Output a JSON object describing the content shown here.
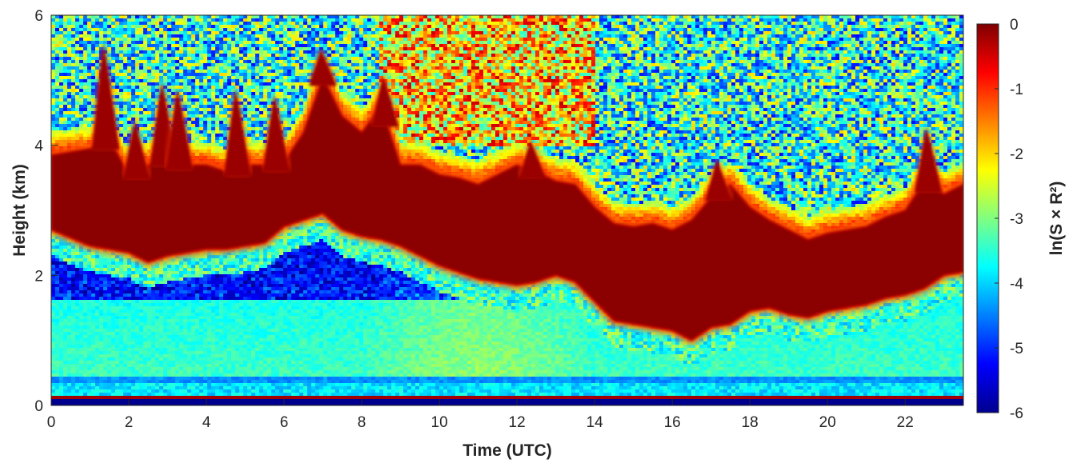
{
  "chart_data": {
    "type": "heatmap",
    "title": "",
    "xlabel": "Time (UTC)",
    "ylabel": "Height (km)",
    "xlim": [
      0,
      23.5
    ],
    "ylim": [
      0,
      6
    ],
    "xticks": [
      0,
      2,
      4,
      6,
      8,
      10,
      12,
      14,
      16,
      18,
      20,
      22
    ],
    "yticks": [
      0,
      2,
      4,
      6
    ],
    "colorbar": {
      "label": "ln(S × R²)",
      "range": [
        -6,
        0
      ],
      "ticks": [
        0,
        -1,
        -2,
        -3,
        -4,
        -5,
        -6
      ],
      "colormap": "jet",
      "colors": [
        "#00008f",
        "#0000ff",
        "#0080ff",
        "#00ffff",
        "#80ff80",
        "#ffff00",
        "#ff8000",
        "#ff0000",
        "#800000"
      ]
    },
    "layers": {
      "cloud_base_km": [
        [
          0,
          2.7
        ],
        [
          1,
          2.45
        ],
        [
          1.5,
          2.4
        ],
        [
          2,
          2.35
        ],
        [
          2.5,
          2.2
        ],
        [
          3,
          2.3
        ],
        [
          3.5,
          2.35
        ],
        [
          4,
          2.4
        ],
        [
          4.5,
          2.4
        ],
        [
          5,
          2.45
        ],
        [
          5.5,
          2.5
        ],
        [
          6,
          2.75
        ],
        [
          6.5,
          2.85
        ],
        [
          7,
          2.95
        ],
        [
          7.5,
          2.7
        ],
        [
          8,
          2.6
        ],
        [
          8.5,
          2.55
        ],
        [
          9,
          2.45
        ],
        [
          9.5,
          2.3
        ],
        [
          10,
          2.15
        ],
        [
          10.5,
          2.05
        ],
        [
          11,
          1.95
        ],
        [
          11.5,
          1.9
        ],
        [
          12,
          1.85
        ],
        [
          12.5,
          1.9
        ],
        [
          13,
          2.0
        ],
        [
          13.5,
          1.9
        ],
        [
          14,
          1.6
        ],
        [
          14.5,
          1.3
        ],
        [
          15,
          1.25
        ],
        [
          15.5,
          1.2
        ],
        [
          16,
          1.15
        ],
        [
          16.5,
          1.0
        ],
        [
          17,
          1.2
        ],
        [
          17.5,
          1.25
        ],
        [
          18,
          1.45
        ],
        [
          18.5,
          1.5
        ],
        [
          19,
          1.4
        ],
        [
          19.5,
          1.35
        ],
        [
          20,
          1.45
        ],
        [
          20.5,
          1.5
        ],
        [
          21,
          1.55
        ],
        [
          21.5,
          1.65
        ],
        [
          22,
          1.7
        ],
        [
          22.5,
          1.8
        ],
        [
          23,
          2.0
        ],
        [
          23.5,
          2.05
        ]
      ],
      "cloud_top_km": [
        [
          0,
          3.85
        ],
        [
          1,
          3.95
        ],
        [
          1.5,
          4.1
        ],
        [
          2,
          3.55
        ],
        [
          2.5,
          3.7
        ],
        [
          3,
          3.85
        ],
        [
          3.5,
          3.7
        ],
        [
          4,
          3.7
        ],
        [
          4.5,
          3.6
        ],
        [
          5,
          3.7
        ],
        [
          5.5,
          3.7
        ],
        [
          6,
          3.75
        ],
        [
          6.5,
          4.2
        ],
        [
          7,
          5.05
        ],
        [
          7.5,
          4.45
        ],
        [
          8,
          4.2
        ],
        [
          8.5,
          4.6
        ],
        [
          9,
          3.7
        ],
        [
          9.5,
          3.7
        ],
        [
          10,
          3.55
        ],
        [
          10.5,
          3.5
        ],
        [
          11,
          3.4
        ],
        [
          11.5,
          3.55
        ],
        [
          12,
          3.7
        ],
        [
          12.5,
          3.6
        ],
        [
          13,
          3.45
        ],
        [
          13.5,
          3.4
        ],
        [
          14,
          3.05
        ],
        [
          14.5,
          2.8
        ],
        [
          15,
          2.75
        ],
        [
          15.5,
          2.8
        ],
        [
          16,
          2.7
        ],
        [
          16.5,
          2.85
        ],
        [
          17,
          3.2
        ],
        [
          17.5,
          3.4
        ],
        [
          18,
          3.05
        ],
        [
          18.5,
          2.85
        ],
        [
          19,
          2.7
        ],
        [
          19.5,
          2.55
        ],
        [
          20,
          2.65
        ],
        [
          20.5,
          2.7
        ],
        [
          21,
          2.75
        ],
        [
          21.5,
          2.9
        ],
        [
          22,
          3.0
        ],
        [
          22.5,
          3.45
        ],
        [
          23,
          3.25
        ],
        [
          23.5,
          3.4
        ]
      ],
      "cloud_plumes": [
        [
          1.4,
          5.6
        ],
        [
          2.2,
          4.4
        ],
        [
          2.9,
          5.0
        ],
        [
          3.3,
          4.9
        ],
        [
          4.8,
          4.9
        ],
        [
          5.8,
          4.8
        ],
        [
          7.0,
          5.5
        ],
        [
          8.6,
          5.1
        ],
        [
          12.4,
          4.1
        ],
        [
          17.2,
          3.8
        ],
        [
          22.6,
          4.3
        ]
      ]
    }
  }
}
